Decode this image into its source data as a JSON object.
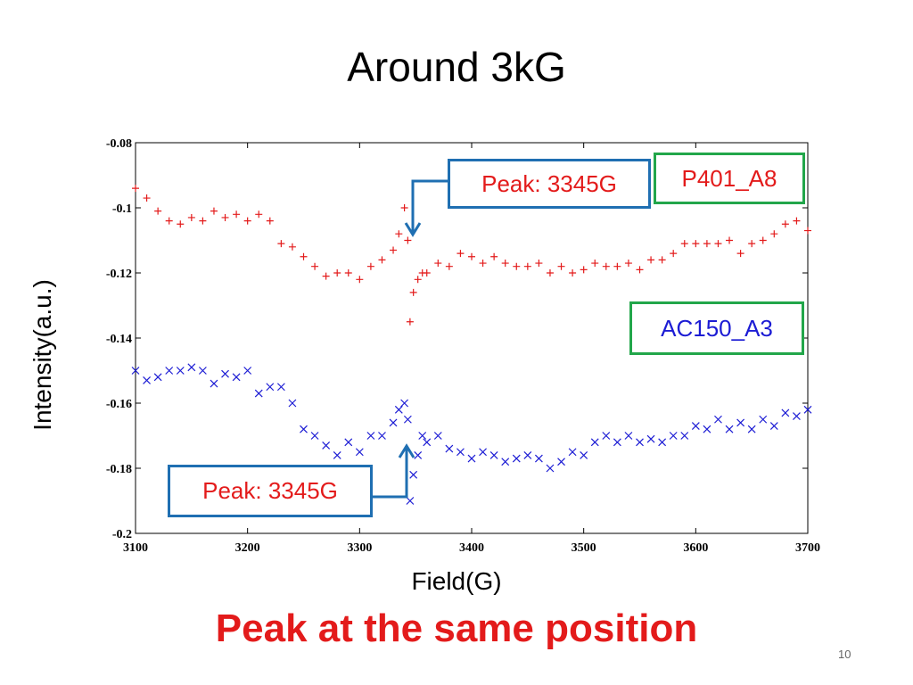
{
  "slide": {
    "title": "Around 3kG",
    "subtitle": "Peak at the same position",
    "page_number": "10",
    "colors": {
      "subtitle": "#e31b1b",
      "red_series": "#e31b1b",
      "blue_series": "#1c1cd4",
      "callout_border": "#1f6fb2",
      "label_border": "#22a64a"
    }
  },
  "annotations": {
    "peak_top": "Peak: 3345G",
    "peak_bottom": "Peak: 3345G",
    "series_a": "P401_A8",
    "series_b": "AC150_A3"
  },
  "chart_data": {
    "type": "scatter",
    "title": "",
    "xlabel": "Field(G)",
    "ylabel": "Intensity(a.u.)",
    "xlim": [
      3100,
      3700
    ],
    "ylim": [
      -0.2,
      -0.08
    ],
    "x_ticks": [
      "3100",
      "3200",
      "3300",
      "3400",
      "3500",
      "3600",
      "3700"
    ],
    "y_ticks": [
      "-0.08",
      "-0.1",
      "-0.12",
      "-0.14",
      "-0.16",
      "-0.18",
      "-0.2"
    ],
    "grid": false,
    "series": [
      {
        "name": "P401_A8",
        "marker": "+",
        "color": "#e31b1b",
        "x": [
          3100,
          3110,
          3120,
          3130,
          3140,
          3150,
          3160,
          3170,
          3180,
          3190,
          3200,
          3210,
          3220,
          3230,
          3240,
          3250,
          3260,
          3270,
          3280,
          3290,
          3300,
          3310,
          3320,
          3330,
          3335,
          3340,
          3343,
          3345,
          3348,
          3352,
          3356,
          3360,
          3370,
          3380,
          3390,
          3400,
          3410,
          3420,
          3430,
          3440,
          3450,
          3460,
          3470,
          3480,
          3490,
          3500,
          3510,
          3520,
          3530,
          3540,
          3550,
          3560,
          3570,
          3580,
          3590,
          3600,
          3610,
          3620,
          3630,
          3640,
          3650,
          3660,
          3670,
          3680,
          3690,
          3700
        ],
        "y": [
          -0.094,
          -0.097,
          -0.101,
          -0.104,
          -0.105,
          -0.103,
          -0.104,
          -0.101,
          -0.103,
          -0.102,
          -0.104,
          -0.102,
          -0.104,
          -0.111,
          -0.112,
          -0.115,
          -0.118,
          -0.121,
          -0.12,
          -0.12,
          -0.122,
          -0.118,
          -0.116,
          -0.113,
          -0.108,
          -0.1,
          -0.11,
          -0.135,
          -0.126,
          -0.122,
          -0.12,
          -0.12,
          -0.117,
          -0.118,
          -0.114,
          -0.115,
          -0.117,
          -0.115,
          -0.117,
          -0.118,
          -0.118,
          -0.117,
          -0.12,
          -0.118,
          -0.12,
          -0.119,
          -0.117,
          -0.118,
          -0.118,
          -0.117,
          -0.119,
          -0.116,
          -0.116,
          -0.114,
          -0.111,
          -0.111,
          -0.111,
          -0.111,
          -0.11,
          -0.114,
          -0.111,
          -0.11,
          -0.108,
          -0.105,
          -0.104,
          -0.107
        ]
      },
      {
        "name": "AC150_A3",
        "marker": "x",
        "color": "#1c1cd4",
        "x": [
          3100,
          3110,
          3120,
          3130,
          3140,
          3150,
          3160,
          3170,
          3180,
          3190,
          3200,
          3210,
          3220,
          3230,
          3240,
          3250,
          3260,
          3270,
          3280,
          3290,
          3300,
          3310,
          3320,
          3330,
          3335,
          3340,
          3343,
          3345,
          3348,
          3352,
          3356,
          3360,
          3370,
          3380,
          3390,
          3400,
          3410,
          3420,
          3430,
          3440,
          3450,
          3460,
          3470,
          3480,
          3490,
          3500,
          3510,
          3520,
          3530,
          3540,
          3550,
          3560,
          3570,
          3580,
          3590,
          3600,
          3610,
          3620,
          3630,
          3640,
          3650,
          3660,
          3670,
          3680,
          3690,
          3700
        ],
        "y": [
          -0.15,
          -0.153,
          -0.152,
          -0.15,
          -0.15,
          -0.149,
          -0.15,
          -0.154,
          -0.151,
          -0.152,
          -0.15,
          -0.157,
          -0.155,
          -0.155,
          -0.16,
          -0.168,
          -0.17,
          -0.173,
          -0.176,
          -0.172,
          -0.175,
          -0.17,
          -0.17,
          -0.166,
          -0.162,
          -0.16,
          -0.165,
          -0.19,
          -0.182,
          -0.176,
          -0.17,
          -0.172,
          -0.17,
          -0.174,
          -0.175,
          -0.177,
          -0.175,
          -0.176,
          -0.178,
          -0.177,
          -0.176,
          -0.177,
          -0.18,
          -0.178,
          -0.175,
          -0.176,
          -0.172,
          -0.17,
          -0.172,
          -0.17,
          -0.172,
          -0.171,
          -0.172,
          -0.17,
          -0.17,
          -0.167,
          -0.168,
          -0.165,
          -0.168,
          -0.166,
          -0.168,
          -0.165,
          -0.167,
          -0.163,
          -0.164,
          -0.162
        ]
      }
    ]
  }
}
